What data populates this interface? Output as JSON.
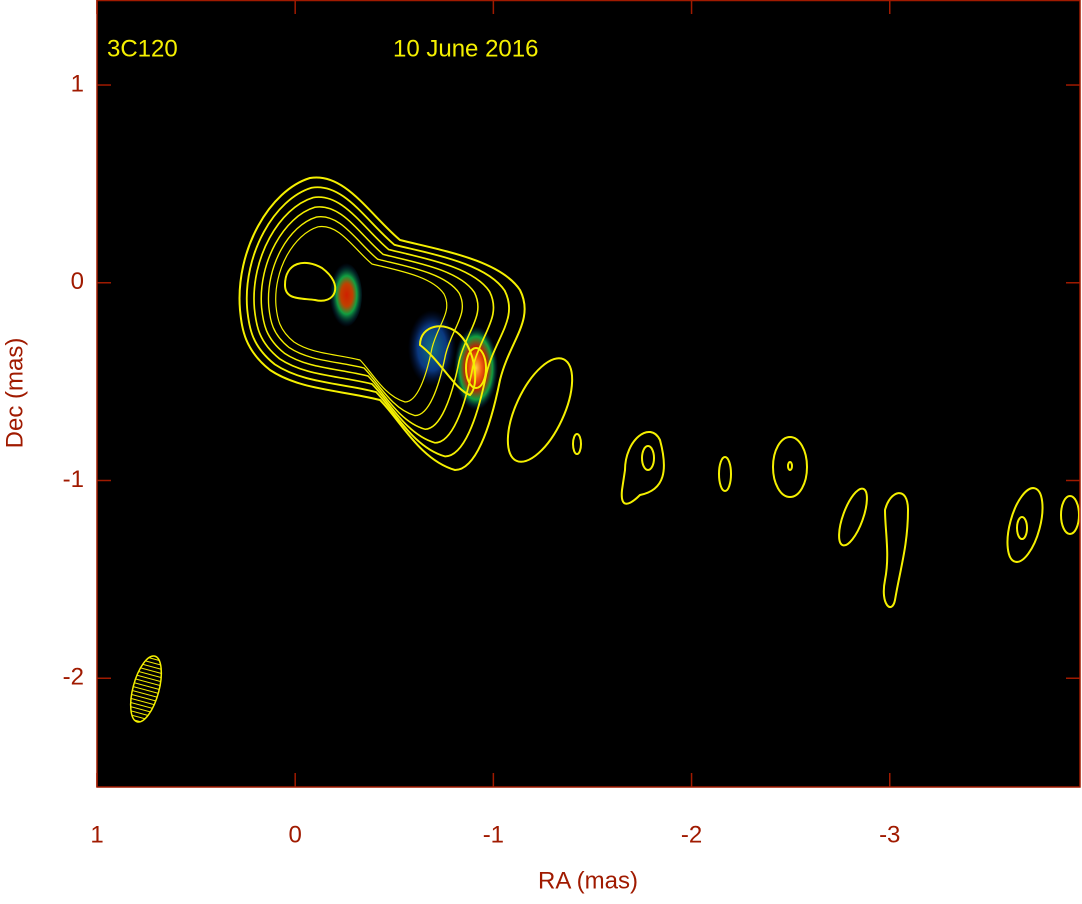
{
  "chart_data": {
    "type": "contour",
    "source_label": "3C120",
    "date_label": "10 June 2016",
    "x_label": "RA (mas)",
    "y_label": "Dec (mas)",
    "xlim": [
      1,
      -3.96
    ],
    "ylim": [
      -2.55,
      1.43
    ],
    "xticks": [
      1,
      0,
      -1,
      -2,
      -3
    ],
    "yticks": [
      1,
      0,
      -1,
      -2
    ],
    "axis_color": "#a01a00",
    "contour_color": "#f5f000"
  }
}
